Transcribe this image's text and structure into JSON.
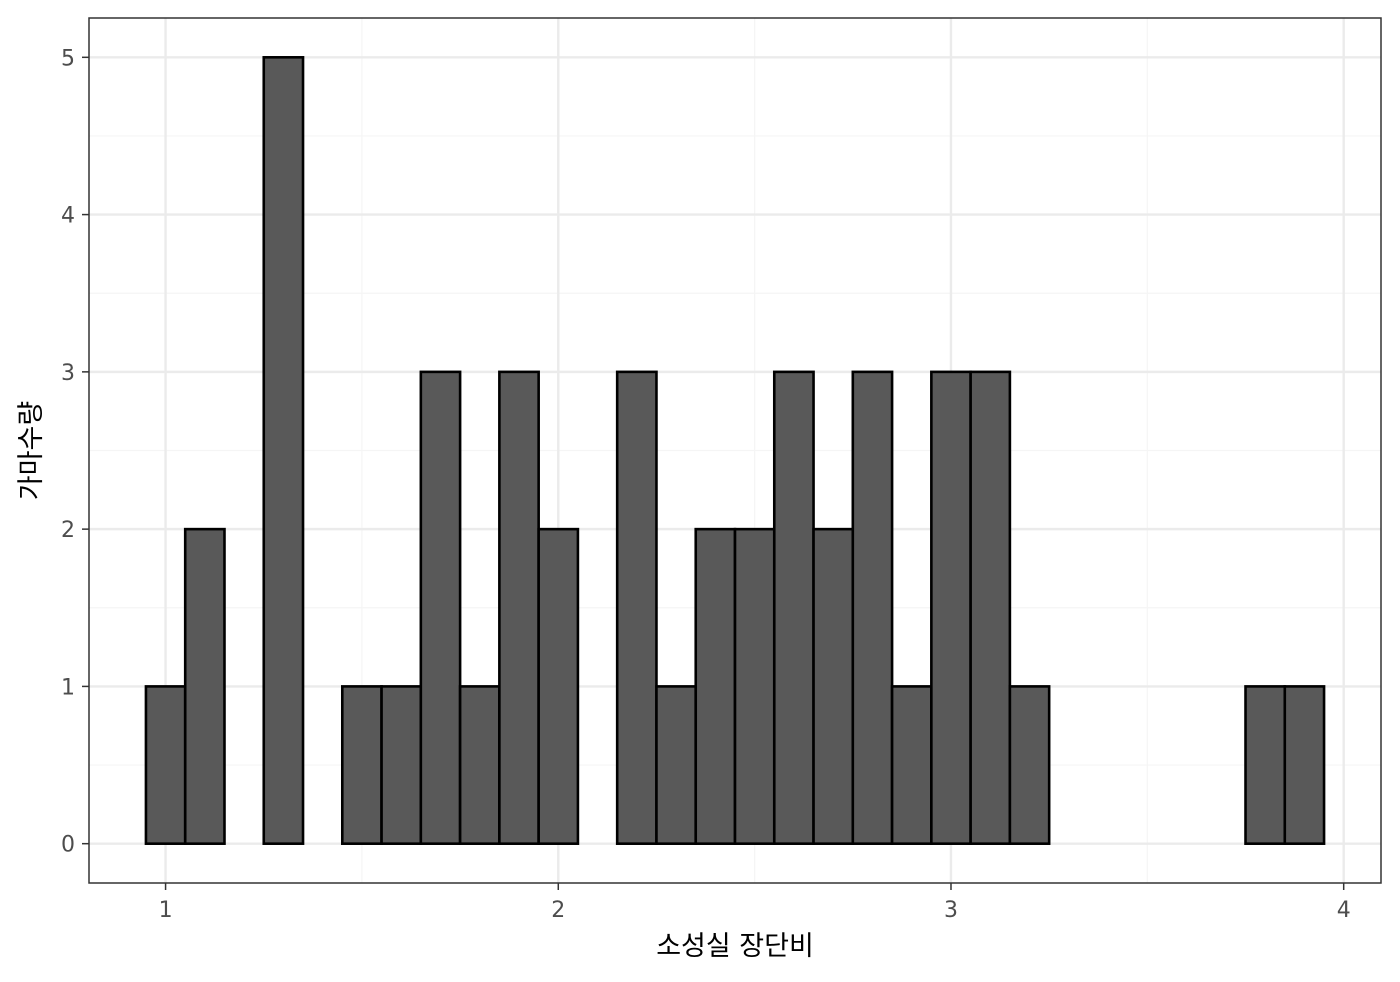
{
  "chart_data": {
    "type": "bar",
    "title": "",
    "xlabel": "소성실 장단비",
    "ylabel": "가마수량",
    "binwidth": 0.1,
    "bins": [
      {
        "x": 1.0,
        "count": 1
      },
      {
        "x": 1.1,
        "count": 2
      },
      {
        "x": 1.2,
        "count": 0
      },
      {
        "x": 1.3,
        "count": 5
      },
      {
        "x": 1.4,
        "count": 0
      },
      {
        "x": 1.5,
        "count": 1
      },
      {
        "x": 1.6,
        "count": 1
      },
      {
        "x": 1.7,
        "count": 3
      },
      {
        "x": 1.8,
        "count": 1
      },
      {
        "x": 1.9,
        "count": 3
      },
      {
        "x": 2.0,
        "count": 2
      },
      {
        "x": 2.1,
        "count": 0
      },
      {
        "x": 2.2,
        "count": 3
      },
      {
        "x": 2.3,
        "count": 1
      },
      {
        "x": 2.4,
        "count": 2
      },
      {
        "x": 2.5,
        "count": 2
      },
      {
        "x": 2.6,
        "count": 3
      },
      {
        "x": 2.7,
        "count": 2
      },
      {
        "x": 2.8,
        "count": 3
      },
      {
        "x": 2.9,
        "count": 1
      },
      {
        "x": 3.0,
        "count": 3
      },
      {
        "x": 3.1,
        "count": 3
      },
      {
        "x": 3.2,
        "count": 1
      },
      {
        "x": 3.3,
        "count": 0
      },
      {
        "x": 3.4,
        "count": 0
      },
      {
        "x": 3.5,
        "count": 0
      },
      {
        "x": 3.6,
        "count": 0
      },
      {
        "x": 3.7,
        "count": 0
      },
      {
        "x": 3.8,
        "count": 1
      },
      {
        "x": 3.9,
        "count": 1
      }
    ],
    "x_ticks": [
      "1",
      "2",
      "3",
      "4"
    ],
    "y_ticks": [
      "0",
      "1",
      "2",
      "3",
      "4",
      "5"
    ],
    "xlim": [
      0.805,
      4.095
    ],
    "ylim": [
      -0.25,
      5.25
    ],
    "grid": true,
    "legend": "none",
    "colors": {
      "bar_fill": "#595959",
      "bar_stroke": "#000000",
      "grid_major": "#ebebeb",
      "grid_minor": "#f5f5f5",
      "panel_border": "#333333"
    }
  }
}
